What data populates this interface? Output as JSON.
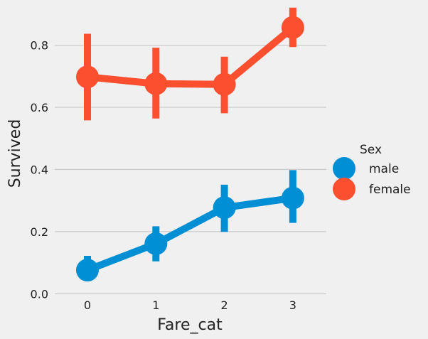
{
  "chart_data": {
    "type": "line",
    "xlabel": "Fare_cat",
    "ylabel": "Survived",
    "categories": [
      "0",
      "1",
      "2",
      "3"
    ],
    "ylim": [
      -0.02,
      0.925
    ],
    "yticks": [
      "0.0",
      "0.2",
      "0.4",
      "0.6",
      "0.8"
    ],
    "grid": true,
    "legend": {
      "title": "Sex",
      "placement": "right"
    },
    "series": [
      {
        "name": "male",
        "color": "#008fd5",
        "values": [
          0.076,
          0.161,
          0.277,
          0.308
        ],
        "ci_low": [
          0.053,
          0.104,
          0.199,
          0.228
        ],
        "ci_high": [
          0.122,
          0.217,
          0.351,
          0.398
        ]
      },
      {
        "name": "female",
        "color": "#fc4f30",
        "values": [
          0.698,
          0.676,
          0.674,
          0.857
        ],
        "ci_low": [
          0.558,
          0.564,
          0.581,
          0.794
        ],
        "ci_high": [
          0.837,
          0.792,
          0.763,
          0.921
        ]
      }
    ]
  }
}
